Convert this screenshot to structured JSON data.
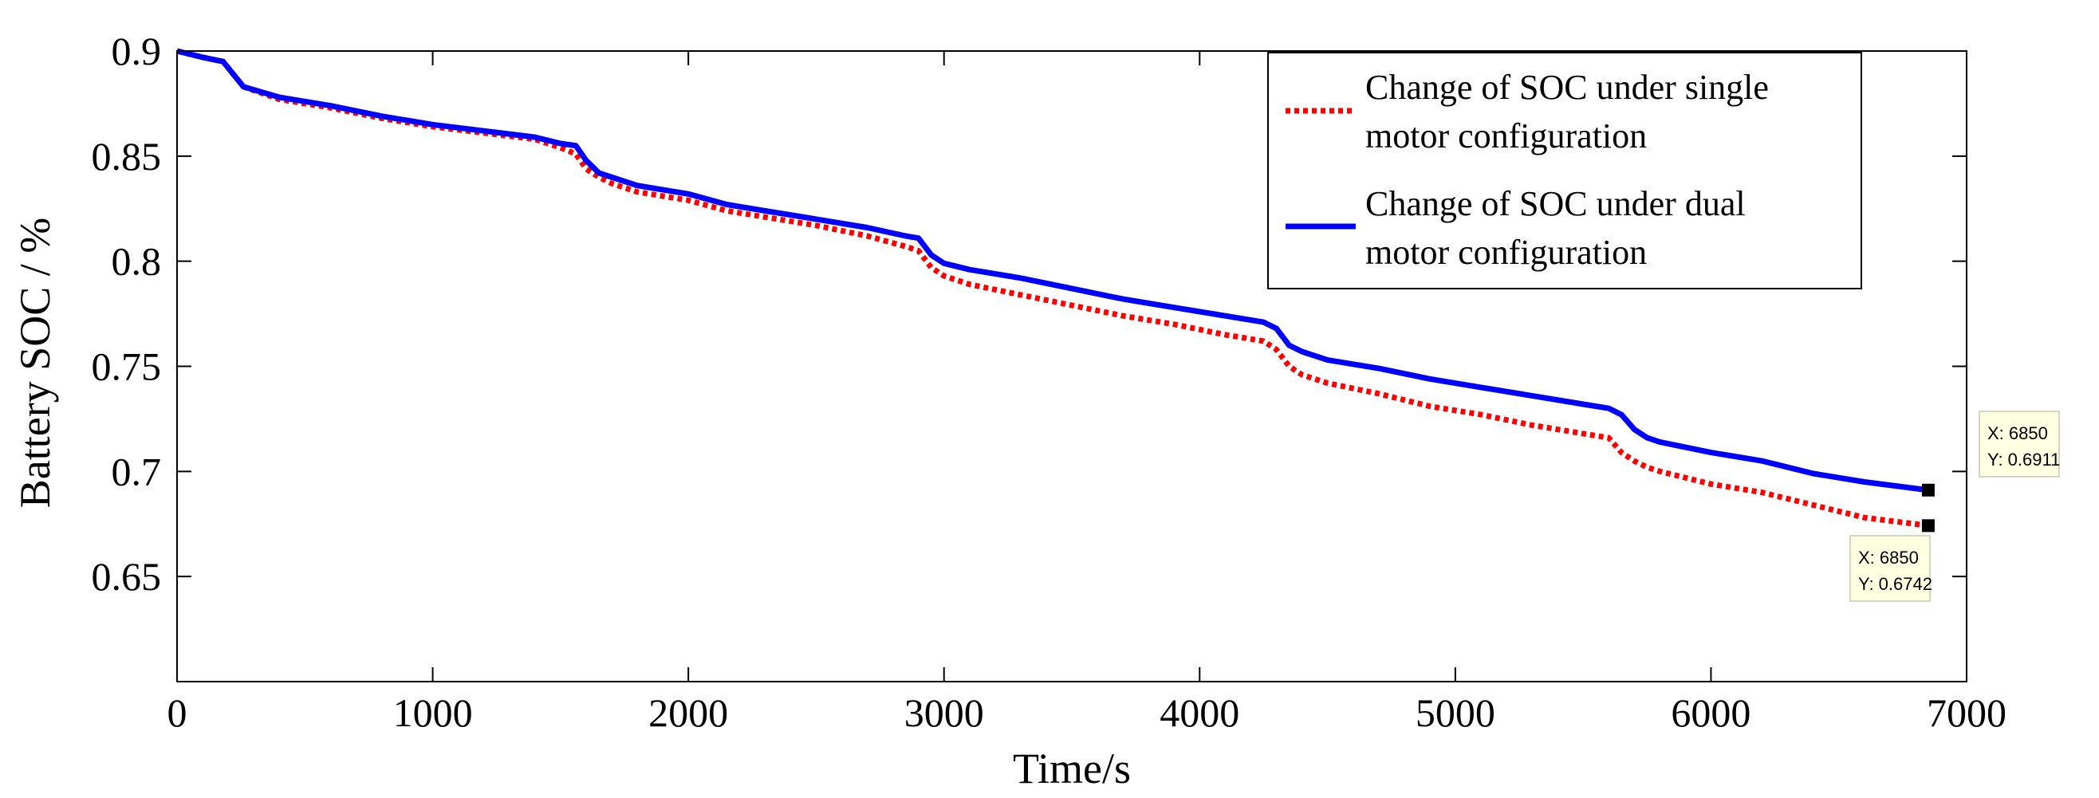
{
  "chart_data": {
    "type": "line",
    "xlabel": "Time/s",
    "ylabel": "Battery SOC / %",
    "xlim": [
      0,
      7000
    ],
    "ylim": [
      0.6,
      0.9
    ],
    "xticks": [
      0,
      1000,
      2000,
      3000,
      4000,
      5000,
      6000,
      7000
    ],
    "xtick_labels": [
      "0",
      "1000",
      "2000",
      "3000",
      "4000",
      "5000",
      "6000",
      "7000"
    ],
    "yticks": [
      0.65,
      0.7,
      0.75,
      0.8,
      0.85,
      0.9
    ],
    "ytick_labels": [
      "0.65",
      "0.7",
      "0.75",
      "0.8",
      "0.85",
      "0.9"
    ],
    "grid": false,
    "legend_position": "top-right",
    "series": [
      {
        "name": "single",
        "legend_line1": "Change of SOC under single",
        "legend_line2": "motor configuration",
        "color": "#ff0000",
        "style": "dotted",
        "x": [
          0,
          100,
          180,
          260,
          400,
          600,
          800,
          1000,
          1200,
          1400,
          1500,
          1560,
          1600,
          1650,
          1700,
          1800,
          2000,
          2150,
          2300,
          2500,
          2700,
          2850,
          2900,
          2950,
          3000,
          3100,
          3300,
          3500,
          3700,
          3900,
          4100,
          4250,
          4300,
          4350,
          4400,
          4500,
          4700,
          4900,
          5100,
          5300,
          5500,
          5600,
          5650,
          5700,
          5750,
          5800,
          6000,
          6200,
          6400,
          6600,
          6850
        ],
        "y": [
          0.9,
          0.897,
          0.895,
          0.883,
          0.877,
          0.873,
          0.868,
          0.864,
          0.861,
          0.858,
          0.854,
          0.851,
          0.844,
          0.84,
          0.837,
          0.833,
          0.829,
          0.824,
          0.821,
          0.817,
          0.812,
          0.807,
          0.805,
          0.797,
          0.793,
          0.789,
          0.784,
          0.779,
          0.774,
          0.77,
          0.765,
          0.762,
          0.758,
          0.75,
          0.746,
          0.742,
          0.737,
          0.731,
          0.727,
          0.722,
          0.718,
          0.716,
          0.709,
          0.705,
          0.702,
          0.7,
          0.694,
          0.69,
          0.684,
          0.678,
          0.6742
        ]
      },
      {
        "name": "dual",
        "legend_line1": "Change of SOC under dual",
        "legend_line2": "motor configuration",
        "color": "#0000ff",
        "style": "solid",
        "x": [
          0,
          100,
          180,
          260,
          400,
          600,
          800,
          1000,
          1200,
          1400,
          1500,
          1560,
          1600,
          1650,
          1700,
          1800,
          2000,
          2150,
          2300,
          2500,
          2700,
          2850,
          2900,
          2950,
          3000,
          3100,
          3300,
          3500,
          3700,
          3900,
          4100,
          4250,
          4300,
          4350,
          4400,
          4500,
          4700,
          4900,
          5100,
          5300,
          5500,
          5600,
          5650,
          5700,
          5750,
          5800,
          6000,
          6200,
          6400,
          6600,
          6850
        ],
        "y": [
          0.9,
          0.897,
          0.895,
          0.883,
          0.878,
          0.874,
          0.869,
          0.865,
          0.862,
          0.859,
          0.856,
          0.855,
          0.848,
          0.842,
          0.84,
          0.836,
          0.832,
          0.827,
          0.824,
          0.82,
          0.816,
          0.812,
          0.811,
          0.803,
          0.799,
          0.796,
          0.792,
          0.787,
          0.782,
          0.778,
          0.774,
          0.771,
          0.768,
          0.76,
          0.757,
          0.753,
          0.749,
          0.744,
          0.74,
          0.736,
          0.732,
          0.73,
          0.727,
          0.72,
          0.716,
          0.714,
          0.709,
          0.705,
          0.699,
          0.695,
          0.6911
        ]
      }
    ],
    "annotations": [
      {
        "x": 6850,
        "y": 0.6911,
        "label_x": "X: 6850",
        "label_y": "Y: 0.6911"
      },
      {
        "x": 6850,
        "y": 0.6742,
        "label_x": "X: 6850",
        "label_y": "Y: 0.6742"
      }
    ]
  }
}
